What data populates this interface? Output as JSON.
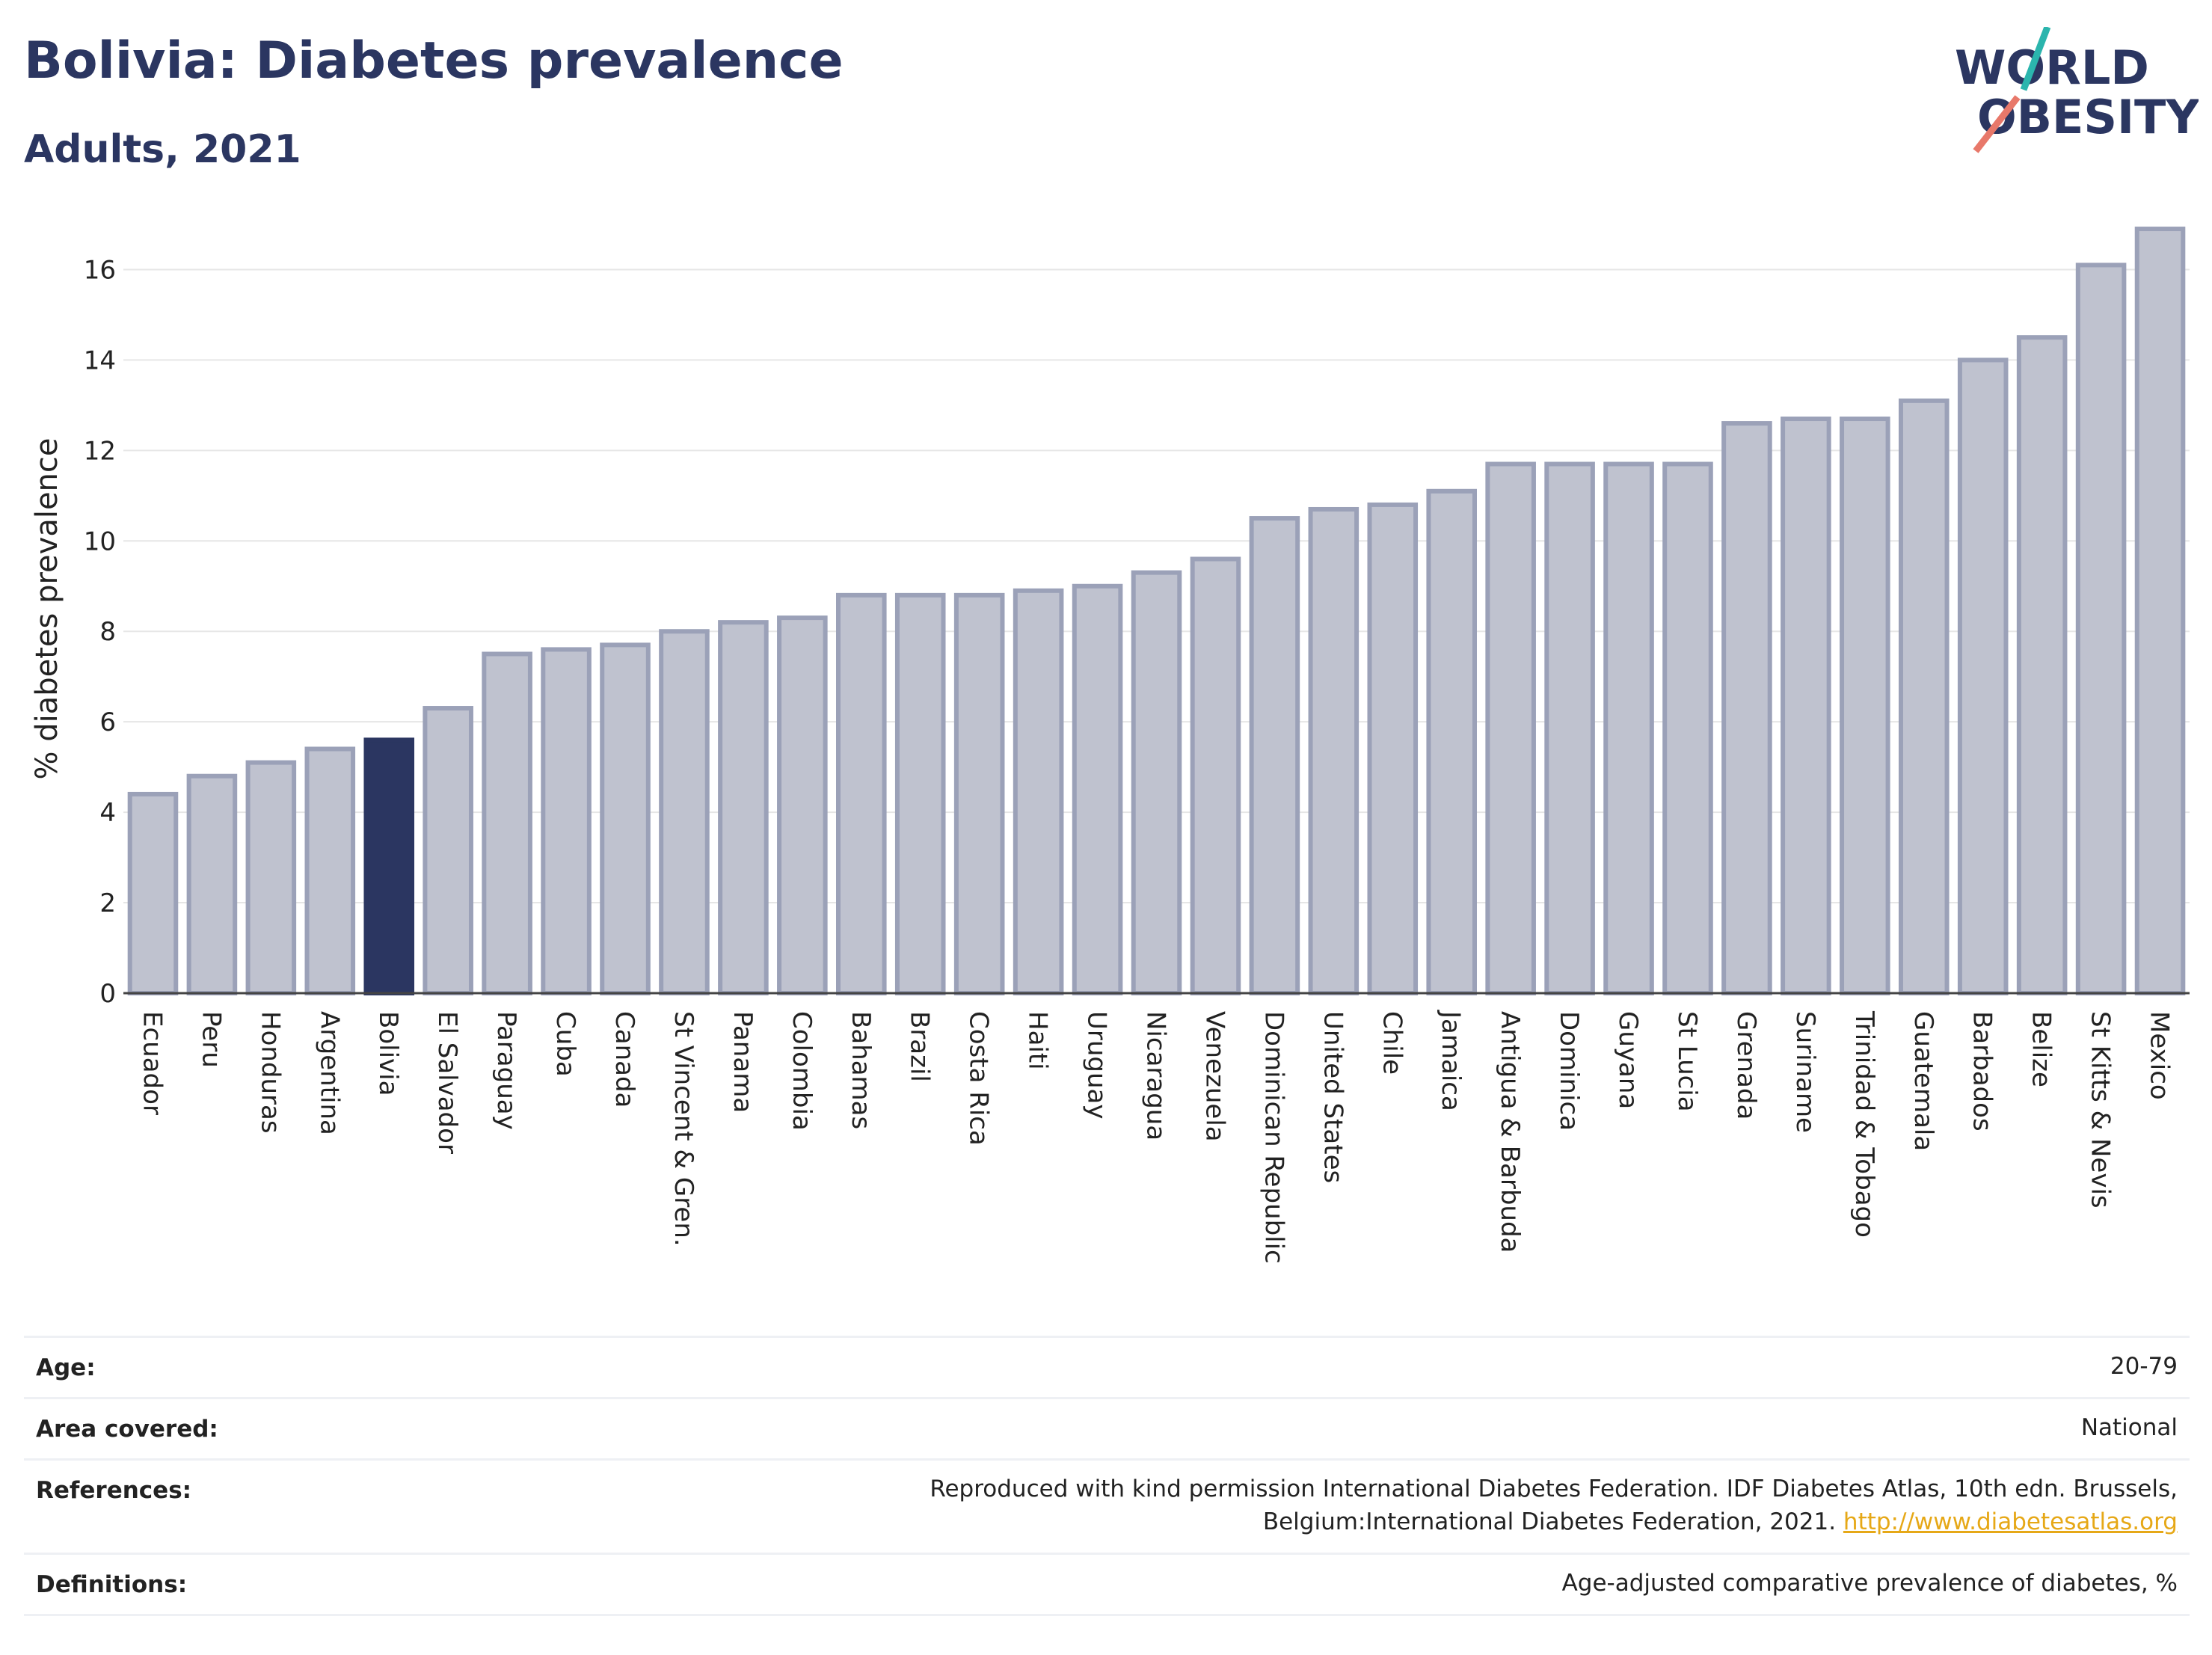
{
  "header": {
    "title": "Bolivia: Diabetes prevalence",
    "subtitle": "Adults, 2021",
    "logo_line1": "WORLD",
    "logo_line2": "OBESITY"
  },
  "colors": {
    "title": "#2b3661",
    "bar": "#bfc2cf",
    "bar_edge": "#9ba1b8",
    "highlight": "#2b3661",
    "grid": "#e6e6e6",
    "link": "#e6a817",
    "logo_teal": "#2bb5ad",
    "logo_coral": "#e8786a"
  },
  "chart_data": {
    "type": "bar",
    "ylabel": "% diabetes prevalence",
    "ylim": [
      0,
      17
    ],
    "yticks": [
      "0",
      "2",
      "4",
      "6",
      "8",
      "10",
      "12",
      "14",
      "16"
    ],
    "highlight": "Bolivia",
    "grid": true,
    "categories": [
      "Ecuador",
      "Peru",
      "Honduras",
      "Argentina",
      "Bolivia",
      "El Salvador",
      "Paraguay",
      "Cuba",
      "Canada",
      "St Vincent & Gren.",
      "Panama",
      "Colombia",
      "Bahamas",
      "Brazil",
      "Costa Rica",
      "Haiti",
      "Uruguay",
      "Nicaragua",
      "Venezuela",
      "Dominican Republic",
      "United States",
      "Chile",
      "Jamaica",
      "Antigua & Barbuda",
      "Dominica",
      "Guyana",
      "St Lucia",
      "Grenada",
      "Suriname",
      "Trinidad & Tobago",
      "Guatemala",
      "Barbados",
      "Belize",
      "St Kitts & Nevis",
      "Mexico"
    ],
    "values": [
      4.4,
      4.8,
      5.1,
      5.4,
      5.6,
      6.3,
      7.5,
      7.6,
      7.7,
      8.0,
      8.2,
      8.3,
      8.8,
      8.8,
      8.8,
      8.9,
      9.0,
      9.3,
      9.6,
      10.5,
      10.7,
      10.8,
      11.1,
      11.7,
      11.7,
      11.7,
      11.7,
      12.6,
      12.7,
      12.7,
      13.1,
      14.0,
      14.5,
      16.1,
      16.9
    ]
  },
  "meta": [
    {
      "key": "Age:",
      "value": "20-79"
    },
    {
      "key": "Area covered:",
      "value": "National"
    },
    {
      "key": "References:",
      "value": "Reproduced with kind permission International Diabetes Federation.  IDF Diabetes Atlas, 10th edn. Brussels, Belgium:International Diabetes Federation, 2021.",
      "link": "http://www.diabetesatlas.org"
    },
    {
      "key": "Definitions:",
      "value": "Age-adjusted comparative prevalence of diabetes, %"
    }
  ]
}
